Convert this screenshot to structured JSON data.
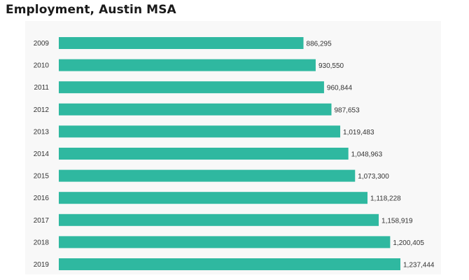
{
  "title": "Employment, Austin MSA",
  "colors": {
    "bar": "#2fb8a0",
    "plot_background": "#f8f8f8",
    "text": "#333333"
  },
  "chart_data": {
    "type": "bar",
    "orientation": "horizontal",
    "title": "Employment, Austin MSA",
    "categories": [
      "2009",
      "2010",
      "2011",
      "2012",
      "2013",
      "2014",
      "2015",
      "2016",
      "2017",
      "2018",
      "2019"
    ],
    "values": [
      886295,
      930550,
      960844,
      987653,
      1019483,
      1048963,
      1073300,
      1118228,
      1158919,
      1200405,
      1237444
    ],
    "value_labels": [
      "886,295",
      "930,550",
      "960,844",
      "987,653",
      "1,019,483",
      "1,048,963",
      "1,073,300",
      "1,118,228",
      "1,158,919",
      "1,200,405",
      "1,237,444"
    ],
    "xlim": [
      0,
      1237444
    ],
    "grid": false,
    "legend": "none"
  }
}
